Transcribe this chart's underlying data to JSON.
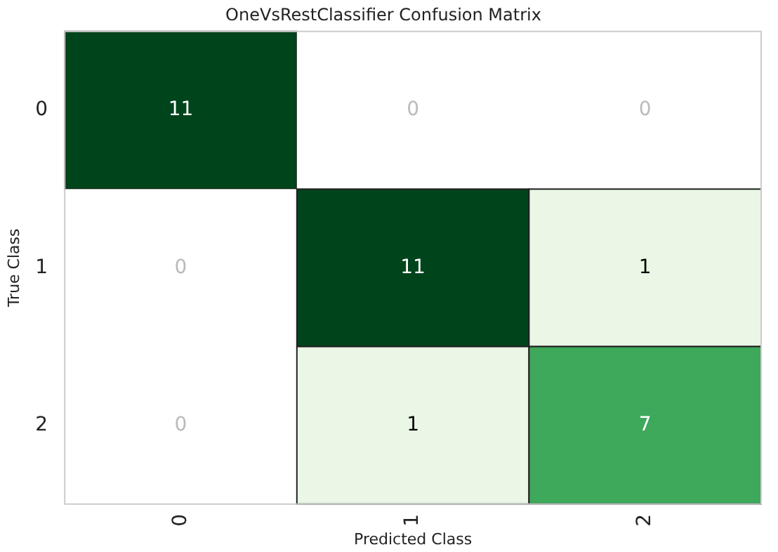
{
  "chart_data": {
    "type": "heatmap",
    "title": "OneVsRestClassifier Confusion Matrix",
    "xlabel": "Predicted Class",
    "ylabel": "True Class",
    "categories": [
      "0",
      "1",
      "2"
    ],
    "y_categories": [
      "0",
      "1",
      "2"
    ],
    "cells": [
      [
        11,
        0,
        0
      ],
      [
        0,
        11,
        1
      ],
      [
        0,
        1,
        7
      ]
    ],
    "data_labels": true,
    "grid": false,
    "legend": false
  }
}
